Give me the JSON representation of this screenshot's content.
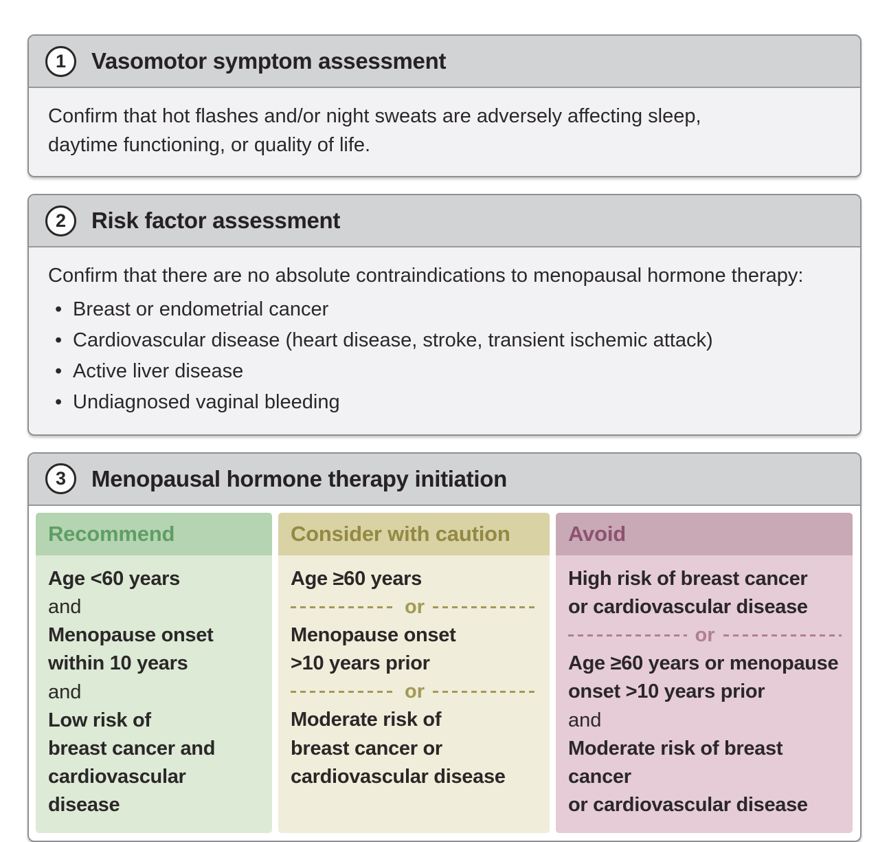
{
  "figure": {
    "panels": [
      {
        "number": "1",
        "title": "Vasomotor symptom assessment",
        "body": "Confirm that hot flashes and/or night sweats are adversely affecting sleep,\ndaytime functioning, or quality of life."
      },
      {
        "number": "2",
        "title": "Risk factor assessment",
        "intro": "Confirm that there are no absolute contraindications to menopausal hormone therapy:",
        "bullets": [
          "Breast or endometrial cancer",
          "Cardiovascular disease (heart disease, stroke, transient ischemic attack)",
          "Active liver disease",
          "Undiagnosed vaginal bleeding"
        ]
      },
      {
        "number": "3",
        "title": "Menopausal hormone therapy initiation",
        "columns": [
          {
            "id": "recommend",
            "label": "Recommend",
            "header_bg": "#b5d4b1",
            "header_text": "#5f9e66",
            "body_bg": "#dcead6",
            "separator_color": "#a29a54",
            "segments": [
              {
                "type": "condition",
                "text": "Age <60 years"
              },
              {
                "type": "conjunction",
                "text": "and"
              },
              {
                "type": "condition",
                "text": "Menopause onset\nwithin 10 years"
              },
              {
                "type": "conjunction",
                "text": "and"
              },
              {
                "type": "condition",
                "text": "Low risk of\nbreast cancer and\ncardiovascular disease"
              }
            ]
          },
          {
            "id": "caution",
            "label": "Consider with caution",
            "header_bg": "#d8d2a5",
            "header_text": "#938942",
            "body_bg": "#f0edda",
            "separator_color": "#a29a54",
            "segments": [
              {
                "type": "condition",
                "text": "Age ≥60 years"
              },
              {
                "type": "separator",
                "text": "or"
              },
              {
                "type": "condition",
                "text": "Menopause onset\n>10 years prior"
              },
              {
                "type": "separator",
                "text": "or"
              },
              {
                "type": "condition",
                "text": "Moderate risk of\nbreast cancer or\ncardiovascular disease"
              }
            ]
          },
          {
            "id": "avoid",
            "label": "Avoid",
            "header_bg": "#c9a9b6",
            "header_text": "#8d5270",
            "body_bg": "#e5ccd6",
            "separator_color": "#b27e93",
            "segments": [
              {
                "type": "condition",
                "text": "High risk of breast cancer\nor cardiovascular disease"
              },
              {
                "type": "separator",
                "text": "or"
              },
              {
                "type": "condition",
                "text": "Age ≥60 years or menopause\nonset >10 years prior"
              },
              {
                "type": "conjunction",
                "text": "and"
              },
              {
                "type": "condition",
                "text": "Moderate risk of breast cancer\nor cardiovascular disease"
              }
            ]
          }
        ]
      }
    ]
  }
}
